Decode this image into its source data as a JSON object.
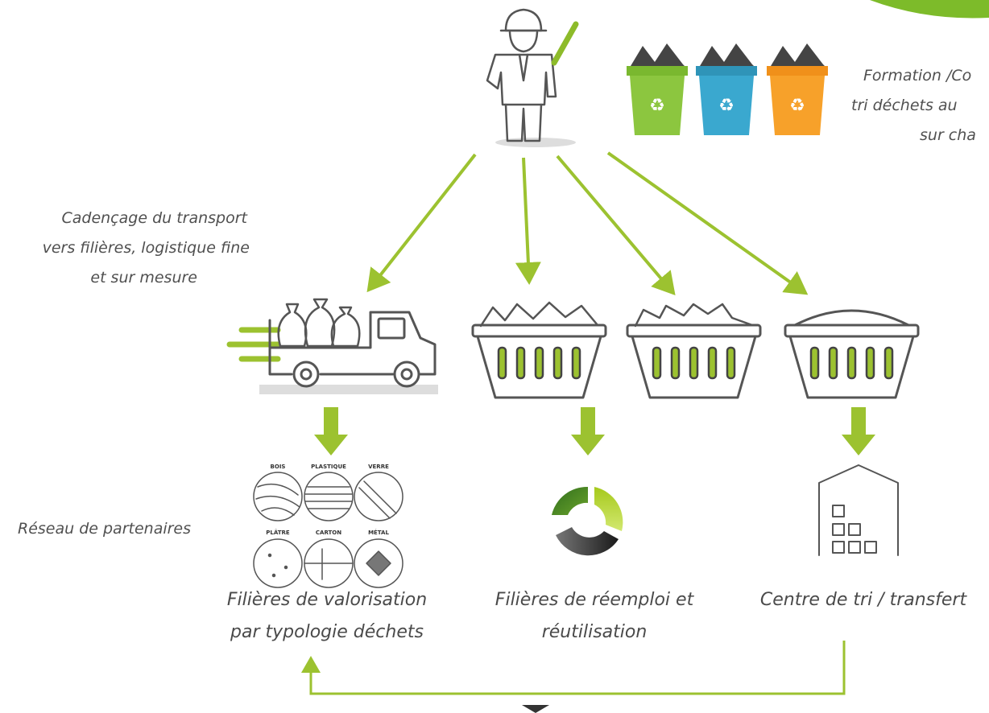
{
  "top_note": {
    "lines": [
      "Formation /Co",
      "tri déchets au",
      "sur cha"
    ]
  },
  "transport_note": {
    "lines": [
      "Cadençage du transport",
      "vers filières, logistique fine",
      "et sur mesure"
    ]
  },
  "partners_note": "Réseau de partenaires",
  "materials": [
    "BOIS",
    "PLASTIQUE",
    "VERRE",
    "PLÂTRE",
    "CARTON",
    "MÉTAL"
  ],
  "outputs": [
    {
      "lines": [
        "Filières de valorisation",
        "par typologie déchets"
      ]
    },
    {
      "lines": [
        "Filières de réemploi et",
        "réutilisation"
      ]
    },
    {
      "lines": [
        "Centre de tri / transfert"
      ]
    }
  ]
}
